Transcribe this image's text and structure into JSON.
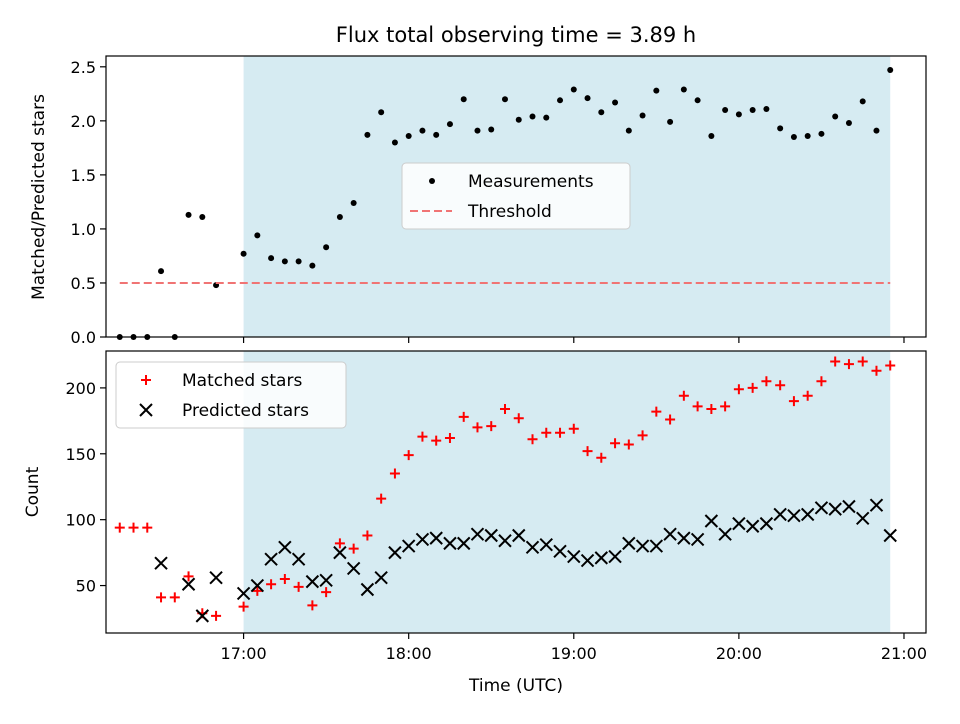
{
  "chart_data": [
    {
      "type": "scatter",
      "title": "Flux total observing time = 3.89 h",
      "xlabel": "",
      "ylabel": "Matched/Predicted stars",
      "xlim": [
        "16:10",
        "21:08"
      ],
      "ylim": [
        0,
        2.6
      ],
      "yticks": [
        "0.0",
        "0.5",
        "1.0",
        "1.5",
        "2.0",
        "2.5"
      ],
      "shaded_span": [
        "17:00",
        "20:55"
      ],
      "legend_position": "center",
      "series": [
        {
          "name": "Measurements",
          "color": "#000000",
          "marker": "dot",
          "x": [
            "16:15",
            "16:20",
            "16:25",
            "16:30",
            "16:35",
            "16:40",
            "16:45",
            "16:50",
            "17:00",
            "17:05",
            "17:10",
            "17:15",
            "17:20",
            "17:25",
            "17:30",
            "17:35",
            "17:40",
            "17:45",
            "17:50",
            "17:55",
            "18:00",
            "18:05",
            "18:10",
            "18:15",
            "18:20",
            "18:25",
            "18:30",
            "18:35",
            "18:40",
            "18:45",
            "18:50",
            "18:55",
            "19:00",
            "19:05",
            "19:10",
            "19:15",
            "19:20",
            "19:25",
            "19:30",
            "19:35",
            "19:40",
            "19:45",
            "19:50",
            "19:55",
            "20:00",
            "20:05",
            "20:10",
            "20:15",
            "20:20",
            "20:25",
            "20:30",
            "20:35",
            "20:40",
            "20:45",
            "20:50"
          ],
          "y": [
            0.0,
            0.0,
            0.0,
            0.61,
            0.0,
            1.13,
            1.11,
            0.48,
            0.77,
            0.94,
            0.73,
            0.7,
            0.7,
            0.66,
            0.83,
            1.11,
            1.24,
            1.87,
            2.08,
            1.8,
            1.86,
            1.91,
            1.87,
            1.97,
            2.2,
            1.91,
            1.92,
            2.2,
            2.01,
            2.04,
            2.03,
            2.19,
            2.29,
            2.21,
            2.08,
            2.17,
            1.91,
            2.05,
            2.28,
            1.99,
            2.29,
            2.19,
            1.86,
            2.1,
            2.06,
            2.1,
            2.11,
            1.93,
            1.85,
            1.86,
            1.88,
            2.04,
            1.98,
            2.18,
            1.91
          ]
        },
        {
          "name": "Threshold",
          "color": "#f07474",
          "style": "dashed",
          "x": [
            "16:15",
            "20:55"
          ],
          "y": [
            0.5,
            0.5
          ]
        }
      ],
      "extra_point": {
        "x": "20:55",
        "y": 2.47
      }
    },
    {
      "type": "scatter",
      "title": "",
      "xlabel": "Time (UTC)",
      "ylabel": "Count",
      "xlim": [
        "16:10",
        "21:08"
      ],
      "ylim": [
        14,
        228
      ],
      "yticks": [
        "50",
        "100",
        "150",
        "200"
      ],
      "xticks": [
        "17:00",
        "18:00",
        "19:00",
        "20:00",
        "21:00"
      ],
      "shaded_span": [
        "17:00",
        "20:55"
      ],
      "legend_position": "upper-left",
      "series": [
        {
          "name": "Matched stars",
          "color": "#ff0000",
          "marker": "plus",
          "x": [
            "16:15",
            "16:20",
            "16:25",
            "16:30",
            "16:35",
            "16:40",
            "16:45",
            "16:50",
            "17:00",
            "17:05",
            "17:10",
            "17:15",
            "17:20",
            "17:25",
            "17:30",
            "17:35",
            "17:40",
            "17:45",
            "17:50",
            "17:55",
            "18:00",
            "18:05",
            "18:10",
            "18:15",
            "18:20",
            "18:25",
            "18:30",
            "18:35",
            "18:40",
            "18:45",
            "18:50",
            "18:55",
            "19:00",
            "19:05",
            "19:10",
            "19:15",
            "19:20",
            "19:25",
            "19:30",
            "19:35",
            "19:40",
            "19:45",
            "19:50",
            "19:55",
            "20:00",
            "20:05",
            "20:10",
            "20:15",
            "20:20",
            "20:25",
            "20:30",
            "20:35",
            "20:40",
            "20:45",
            "20:50",
            "20:55"
          ],
          "y": [
            94,
            94,
            94,
            41,
            41,
            57,
            29,
            27,
            34,
            46,
            51,
            55,
            49,
            35,
            45,
            82,
            78,
            88,
            116,
            135,
            149,
            163,
            160,
            162,
            178,
            170,
            171,
            184,
            177,
            161,
            166,
            166,
            169,
            152,
            147,
            158,
            157,
            164,
            182,
            176,
            194,
            186,
            184,
            186,
            199,
            200,
            205,
            202,
            190,
            194,
            205,
            220,
            218,
            220,
            213,
            217
          ]
        },
        {
          "name": "Predicted stars",
          "color": "#000000",
          "marker": "x",
          "x": [
            "16:30",
            "16:40",
            "16:45",
            "16:50",
            "17:00",
            "17:05",
            "17:10",
            "17:15",
            "17:20",
            "17:25",
            "17:30",
            "17:35",
            "17:40",
            "17:45",
            "17:50",
            "17:55",
            "18:00",
            "18:05",
            "18:10",
            "18:15",
            "18:20",
            "18:25",
            "18:30",
            "18:35",
            "18:40",
            "18:45",
            "18:50",
            "18:55",
            "19:00",
            "19:05",
            "19:10",
            "19:15",
            "19:20",
            "19:25",
            "19:30",
            "19:35",
            "19:40",
            "19:45",
            "19:50",
            "19:55",
            "20:00",
            "20:05",
            "20:10",
            "20:15",
            "20:20",
            "20:25",
            "20:30",
            "20:35",
            "20:40",
            "20:45",
            "20:50",
            "20:55"
          ],
          "y": [
            67,
            51,
            27,
            56,
            44,
            50,
            70,
            79,
            70,
            53,
            54,
            75,
            63,
            47,
            56,
            75,
            80,
            85,
            86,
            82,
            82,
            89,
            88,
            84,
            88,
            79,
            81,
            76,
            72,
            69,
            71,
            72,
            82,
            80,
            80,
            89,
            86,
            85,
            99,
            89,
            97,
            95,
            97,
            104,
            103,
            104,
            109,
            108,
            110,
            101,
            111,
            88
          ]
        }
      ]
    }
  ]
}
